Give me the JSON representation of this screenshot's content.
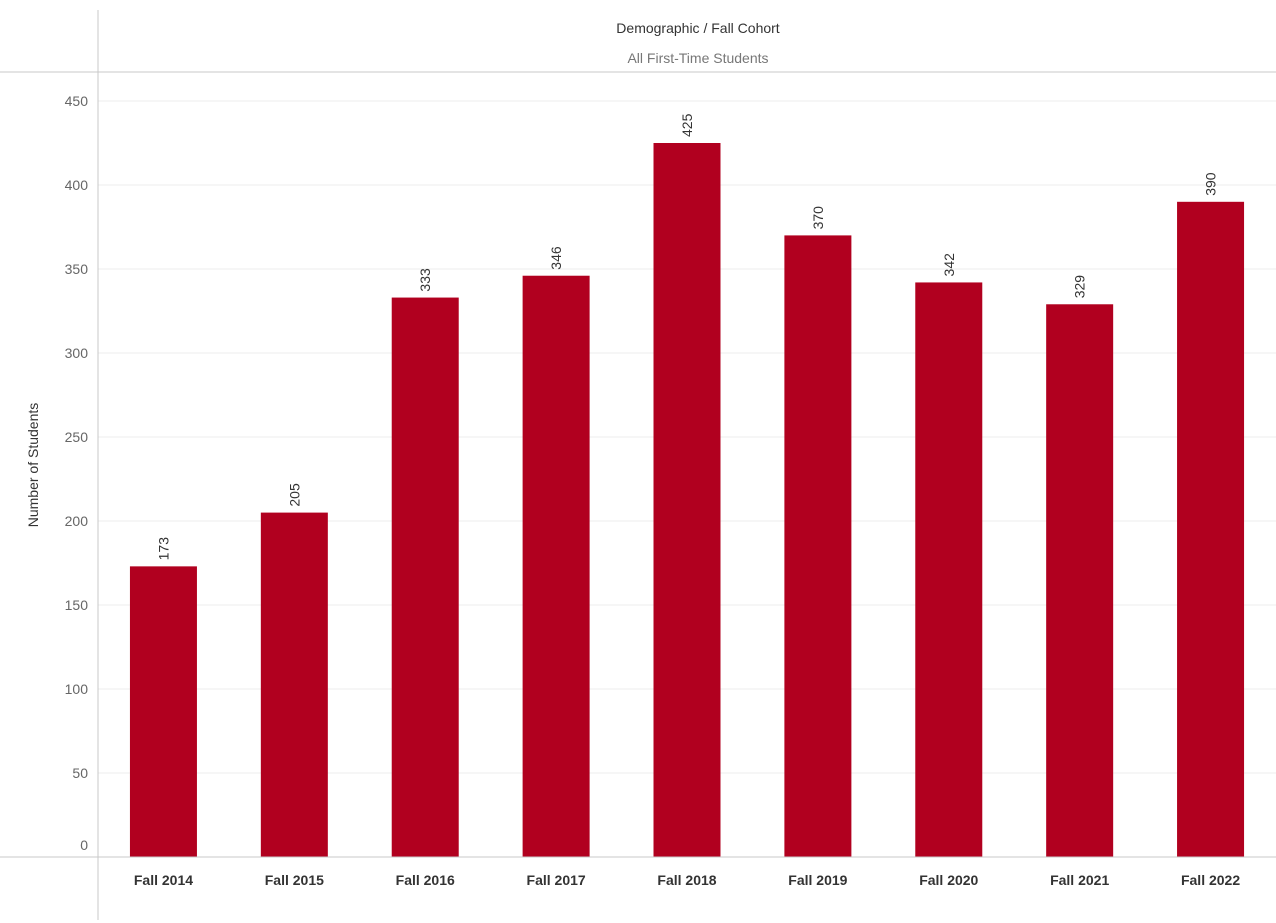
{
  "header": {
    "title": "Demographic / Fall Cohort",
    "subtitle": "All First-Time Students"
  },
  "colors": {
    "bar": "#B1001F",
    "gridline": "#EEEEEE",
    "axis": "#C8C8C8"
  },
  "chart_data": {
    "type": "bar",
    "title": "",
    "xlabel": "",
    "ylabel": "Number of Students",
    "ylim": [
      0,
      450
    ],
    "yticks": [
      0,
      50,
      100,
      150,
      200,
      250,
      300,
      350,
      400,
      450
    ],
    "grid": true,
    "categories": [
      "Fall 2014",
      "Fall 2015",
      "Fall 2016",
      "Fall 2017",
      "Fall 2018",
      "Fall 2019",
      "Fall 2020",
      "Fall 2021",
      "Fall 2022"
    ],
    "values": [
      173,
      205,
      333,
      346,
      425,
      370,
      342,
      329,
      390
    ]
  }
}
